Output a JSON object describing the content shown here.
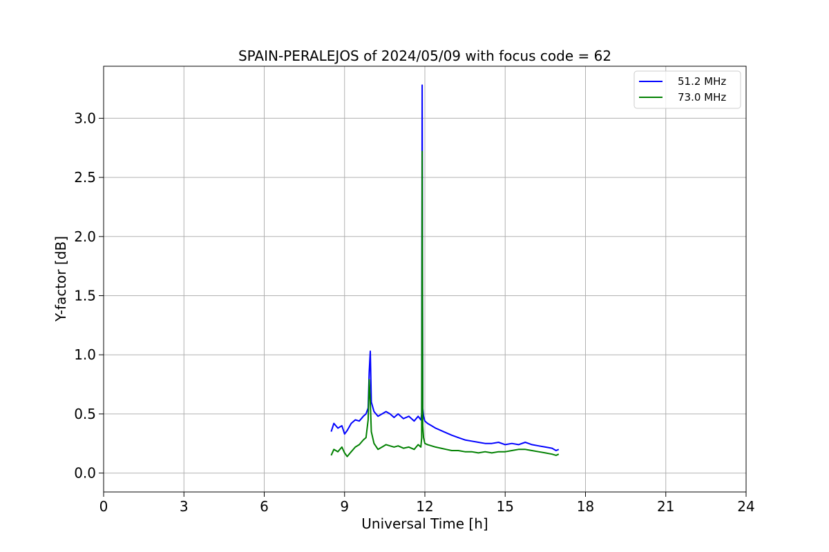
{
  "chart_data": {
    "type": "line",
    "title": "SPAIN-PERALEJOS of 2024/05/09 with focus code = 62",
    "xlabel": "Universal Time [h]",
    "ylabel": "Y-factor [dB]",
    "xlim": [
      0,
      24
    ],
    "ylim": [
      -0.16,
      3.44
    ],
    "xticks": [
      0,
      3,
      6,
      9,
      12,
      15,
      18,
      21,
      24
    ],
    "xtick_labels": [
      "0",
      "3",
      "6",
      "9",
      "12",
      "15",
      "18",
      "21",
      "24"
    ],
    "yticks": [
      0.0,
      0.5,
      1.0,
      1.5,
      2.0,
      2.5,
      3.0
    ],
    "ytick_labels": [
      "0.0",
      "0.5",
      "1.0",
      "1.5",
      "2.0",
      "2.5",
      "3.0"
    ],
    "grid": true,
    "legend_position": "top-right",
    "series": [
      {
        "name": "51.2 MHz",
        "color": "#0000ff",
        "x": [
          8.5,
          8.6,
          8.75,
          8.9,
          9.0,
          9.1,
          9.25,
          9.4,
          9.55,
          9.7,
          9.8,
          9.88,
          9.92,
          9.96,
          10.0,
          10.1,
          10.25,
          10.4,
          10.55,
          10.7,
          10.85,
          11.0,
          11.2,
          11.4,
          11.6,
          11.75,
          11.85,
          11.88,
          11.9,
          11.92,
          11.95,
          12.0,
          12.1,
          12.25,
          12.4,
          12.6,
          12.8,
          13.0,
          13.25,
          13.5,
          13.75,
          14.0,
          14.25,
          14.5,
          14.75,
          15.0,
          15.25,
          15.5,
          15.75,
          16.0,
          16.25,
          16.5,
          16.75,
          16.9,
          17.0
        ],
        "y": [
          0.35,
          0.42,
          0.38,
          0.4,
          0.33,
          0.36,
          0.42,
          0.45,
          0.44,
          0.48,
          0.5,
          0.55,
          0.85,
          1.03,
          0.6,
          0.52,
          0.48,
          0.5,
          0.52,
          0.5,
          0.47,
          0.5,
          0.46,
          0.48,
          0.44,
          0.48,
          0.45,
          0.5,
          3.28,
          0.55,
          0.48,
          0.44,
          0.42,
          0.4,
          0.38,
          0.36,
          0.34,
          0.32,
          0.3,
          0.28,
          0.27,
          0.26,
          0.25,
          0.25,
          0.26,
          0.24,
          0.25,
          0.24,
          0.26,
          0.24,
          0.23,
          0.22,
          0.21,
          0.19,
          0.2
        ]
      },
      {
        "name": "73.0 MHz",
        "color": "#008000",
        "x": [
          8.5,
          8.6,
          8.75,
          8.9,
          9.0,
          9.1,
          9.25,
          9.4,
          9.55,
          9.7,
          9.8,
          9.88,
          9.92,
          9.96,
          10.0,
          10.1,
          10.25,
          10.4,
          10.55,
          10.7,
          10.85,
          11.0,
          11.2,
          11.4,
          11.6,
          11.75,
          11.85,
          11.88,
          11.9,
          11.92,
          11.95,
          12.0,
          12.1,
          12.25,
          12.4,
          12.6,
          12.8,
          13.0,
          13.25,
          13.5,
          13.75,
          14.0,
          14.25,
          14.5,
          14.75,
          15.0,
          15.25,
          15.5,
          15.75,
          16.0,
          16.25,
          16.5,
          16.75,
          16.9,
          17.0
        ],
        "y": [
          0.15,
          0.2,
          0.18,
          0.22,
          0.17,
          0.14,
          0.18,
          0.22,
          0.24,
          0.28,
          0.3,
          0.45,
          0.79,
          0.6,
          0.35,
          0.25,
          0.2,
          0.22,
          0.24,
          0.23,
          0.22,
          0.23,
          0.21,
          0.22,
          0.2,
          0.24,
          0.22,
          0.3,
          2.72,
          0.4,
          0.3,
          0.25,
          0.24,
          0.23,
          0.22,
          0.21,
          0.2,
          0.19,
          0.19,
          0.18,
          0.18,
          0.17,
          0.18,
          0.17,
          0.18,
          0.18,
          0.19,
          0.2,
          0.2,
          0.19,
          0.18,
          0.17,
          0.16,
          0.15,
          0.16
        ]
      }
    ]
  }
}
